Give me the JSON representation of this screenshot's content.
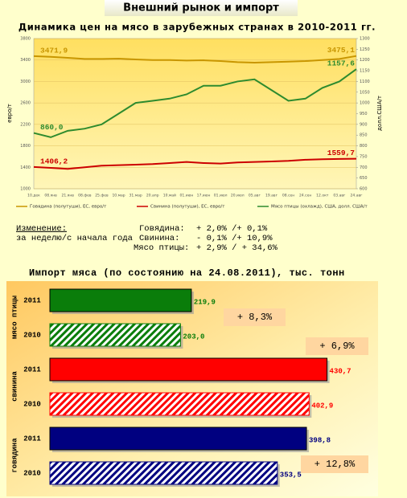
{
  "header": {
    "title": "Внешний рынок и импорт"
  },
  "chart_data": [
    {
      "type": "line",
      "title": "Динамика цен на мясо в зарубежных странах в 2010-2011 гг.",
      "ylabel": "евро/т",
      "y2label": "долл.США/т",
      "categories": [
        "10.дек",
        "08.янв",
        "21.янв",
        "08.фев",
        "25.фев",
        "10.мар",
        "31.мар",
        "20.апр",
        "10.май",
        "01.июн",
        "17.июн",
        "01.июл",
        "20.июл",
        "05.авг",
        "19.авг",
        "08.сен",
        "24.сен",
        "12.окт",
        "03.авг",
        "24.авг"
      ],
      "series": [
        {
          "name": "Говядина (полутуши), ЕС, евро/т",
          "color": "#c89600",
          "values": [
            3471.9,
            3460,
            3440,
            3420,
            3420,
            3425,
            3410,
            3400,
            3400,
            3390,
            3395,
            3380,
            3360,
            3350,
            3360,
            3370,
            3380,
            3400,
            3420,
            3475.1
          ],
          "value_labels": [
            "3471,9",
            null,
            null,
            null,
            null,
            null,
            null,
            null,
            null,
            null,
            null,
            null,
            null,
            null,
            null,
            null,
            null,
            null,
            null,
            "3475,1"
          ]
        },
        {
          "name": "Свинина (полутуши), ЕС, евро/т",
          "color": "#cc0000",
          "values": [
            1406.2,
            1390,
            1370,
            1400,
            1430,
            1440,
            1450,
            1460,
            1480,
            1500,
            1480,
            1470,
            1490,
            1500,
            1510,
            1520,
            1540,
            1550,
            1555,
            1559.7
          ],
          "value_labels": [
            "1406,2",
            null,
            null,
            null,
            null,
            null,
            null,
            null,
            null,
            null,
            null,
            null,
            null,
            null,
            null,
            null,
            null,
            null,
            null,
            "1559,7"
          ]
        },
        {
          "name": "Мясо птицы (охлажд), США, долл. США/т",
          "color": "#2e8b2e",
          "axis": "y2",
          "values": [
            860.0,
            840,
            870,
            880,
            900,
            950,
            1000,
            1010,
            1020,
            1040,
            1080,
            1080,
            1100,
            1110,
            1060,
            1010,
            1020,
            1070,
            1100,
            1157.6
          ],
          "value_labels": [
            "860,0",
            null,
            null,
            null,
            null,
            null,
            null,
            null,
            null,
            null,
            null,
            null,
            null,
            null,
            null,
            null,
            null,
            null,
            null,
            "1157,6"
          ]
        }
      ],
      "ylim": [
        1000,
        3800
      ],
      "yticks": [
        1000,
        1400,
        1800,
        2200,
        2600,
        3000,
        3400,
        3800
      ],
      "y2lim": [
        600,
        1300
      ],
      "y2ticks": [
        600,
        650,
        700,
        750,
        800,
        850,
        900,
        950,
        1000,
        1050,
        1100,
        1150,
        1200,
        1250,
        1300
      ],
      "grid": true,
      "legend": "bottom"
    },
    {
      "type": "barh",
      "title": "Импорт мяса (по состоянию на 24.08.2011), тыс. тонн",
      "categories": [
        "2011",
        "2010"
      ],
      "category_styles": [
        "solid",
        "hatch"
      ],
      "xlim": [
        0,
        540
      ],
      "series": [
        {
          "name": "мясо птицы",
          "color": "#0a7d0a",
          "values": [
            219.9,
            203.0
          ],
          "value_labels": [
            "219,9",
            "203,0"
          ],
          "annotation": "+ 8,3%"
        },
        {
          "name": "свинина",
          "color": "#ff0000",
          "values": [
            430.7,
            402.9
          ],
          "value_labels": [
            "430,7",
            "402,9"
          ],
          "annotation": "+ 6,9%"
        },
        {
          "name": "говядина",
          "color": "#000080",
          "values": [
            398.8,
            353.5
          ],
          "value_labels": [
            "398,8",
            "353,5"
          ],
          "annotation": "+ 12,8%"
        }
      ]
    }
  ],
  "changes": {
    "title": "Изменение:",
    "subtitle": "за неделю/с начала года",
    "rows": [
      [
        "Говядина:",
        "+ 2,0% /+ 0,1%"
      ],
      [
        "Свинина:",
        "- 0,1% /+ 10,9%"
      ],
      [
        "Мясо птицы:",
        "+ 2,9% / + 34,6%"
      ]
    ]
  }
}
